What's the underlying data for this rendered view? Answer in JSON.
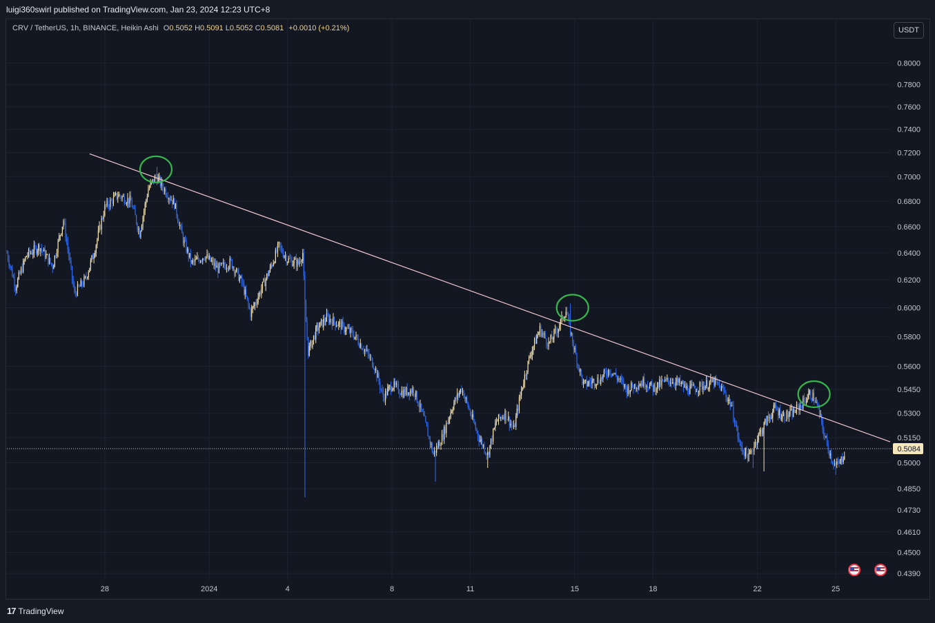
{
  "header": {
    "publisher": "luigi360swirl published on TradingView.com, Jan 23, 2024 12:23 UTC+8"
  },
  "legend": {
    "symbol": "CRV / TetherUS, 1h, BINANCE, Heikin Ashi",
    "o_label": "O",
    "o_value": "0.5052",
    "h_label": "H",
    "h_value": "0.5091",
    "l_label": "L",
    "l_value": "0.5052",
    "c_label": "C",
    "c_value": "0.5081",
    "change": "+0.0010 (+0.21%)"
  },
  "currency_button": "USDT",
  "footer": {
    "brand": "TradingView",
    "brand_mark": "17"
  },
  "icons": {
    "event_flags": [
      "us-flag-icon",
      "us-flag-icon"
    ]
  },
  "colors": {
    "bull": "#f5e3b0",
    "bear": "#2f6bf5",
    "trendline": "#f3c9d0",
    "annotation": "#35b84b",
    "bg": "#131722"
  },
  "chart_data": {
    "type": "candlestick",
    "symbol": "CRV / TetherUS",
    "interval": "1h",
    "exchange": "BINANCE",
    "style": "Heikin Ashi",
    "y_ticks": [
      "0.8000",
      "0.7800",
      "0.7600",
      "0.7400",
      "0.7200",
      "0.7000",
      "0.6800",
      "0.6600",
      "0.6400",
      "0.6200",
      "0.6000",
      "0.5800",
      "0.5600",
      "0.5450",
      "0.5300",
      "0.5150",
      "0.5000",
      "0.4850",
      "0.4730",
      "0.4610",
      "0.4500",
      "0.4390"
    ],
    "y_scale": "log",
    "ylim": [
      0.4355,
      0.824
    ],
    "x_ticks": [
      {
        "label": "28",
        "date": "2023-12-28"
      },
      {
        "label": "2024",
        "date": "2024-01-01"
      },
      {
        "label": "4",
        "date": "2024-01-04"
      },
      {
        "label": "8",
        "date": "2024-01-08"
      },
      {
        "label": "11",
        "date": "2024-01-11"
      },
      {
        "label": "15",
        "date": "2024-01-15"
      },
      {
        "label": "18",
        "date": "2024-01-18"
      },
      {
        "label": "22",
        "date": "2024-01-22"
      },
      {
        "label": "25",
        "date": "2024-01-25"
      }
    ],
    "xlim": [
      "2023-12-24T06:00",
      "2024-01-27T02:00"
    ],
    "current_price": "0.5084",
    "price_path": [
      [
        "2023-12-24T06:00",
        0.64
      ],
      [
        "2023-12-24T14:00",
        0.615
      ],
      [
        "2023-12-25T00:00",
        0.638
      ],
      [
        "2023-12-25T12:00",
        0.645
      ],
      [
        "2023-12-26T00:00",
        0.63
      ],
      [
        "2023-12-26T10:00",
        0.665
      ],
      [
        "2023-12-26T20:00",
        0.61
      ],
      [
        "2023-12-27T06:00",
        0.62
      ],
      [
        "2023-12-27T14:00",
        0.64
      ],
      [
        "2023-12-28T00:00",
        0.675
      ],
      [
        "2023-12-28T12:00",
        0.685
      ],
      [
        "2023-12-29T00:00",
        0.68
      ],
      [
        "2023-12-29T08:00",
        0.655
      ],
      [
        "2023-12-29T16:00",
        0.69
      ],
      [
        "2023-12-29T23:00",
        0.7
      ],
      [
        "2023-12-30T08:00",
        0.688
      ],
      [
        "2023-12-30T16:00",
        0.678
      ],
      [
        "2023-12-31T00:00",
        0.65
      ],
      [
        "2023-12-31T08:00",
        0.632
      ],
      [
        "2023-12-31T20:00",
        0.638
      ],
      [
        "2024-01-01T08:00",
        0.628
      ],
      [
        "2024-01-01T20:00",
        0.633
      ],
      [
        "2024-01-02T06:00",
        0.618
      ],
      [
        "2024-01-02T14:00",
        0.596
      ],
      [
        "2024-01-02T22:00",
        0.61
      ],
      [
        "2024-01-03T08:00",
        0.628
      ],
      [
        "2024-01-03T16:00",
        0.645
      ],
      [
        "2024-01-04T00:00",
        0.635
      ],
      [
        "2024-01-04T10:00",
        0.632
      ],
      [
        "2024-01-04T14:00",
        0.64
      ],
      [
        "2024-01-04T16:00",
        0.6
      ],
      [
        "2024-01-04T19:00",
        0.57
      ],
      [
        "2024-01-05T03:00",
        0.585
      ],
      [
        "2024-01-05T12:00",
        0.593
      ],
      [
        "2024-01-06T00:00",
        0.588
      ],
      [
        "2024-01-06T12:00",
        0.582
      ],
      [
        "2024-01-07T00:00",
        0.57
      ],
      [
        "2024-01-07T08:00",
        0.56
      ],
      [
        "2024-01-07T16:00",
        0.54
      ],
      [
        "2024-01-08T00:00",
        0.548
      ],
      [
        "2024-01-08T10:00",
        0.543
      ],
      [
        "2024-01-08T20:00",
        0.545
      ],
      [
        "2024-01-09T06:00",
        0.525
      ],
      [
        "2024-01-09T14:00",
        0.505
      ],
      [
        "2024-01-09T22:00",
        0.515
      ],
      [
        "2024-01-10T08:00",
        0.535
      ],
      [
        "2024-01-10T16:00",
        0.546
      ],
      [
        "2024-01-11T00:00",
        0.53
      ],
      [
        "2024-01-11T08:00",
        0.515
      ],
      [
        "2024-01-11T16:00",
        0.505
      ],
      [
        "2024-01-12T00:00",
        0.525
      ],
      [
        "2024-01-12T08:00",
        0.53
      ],
      [
        "2024-01-12T16:00",
        0.52
      ],
      [
        "2024-01-13T00:00",
        0.548
      ],
      [
        "2024-01-13T08:00",
        0.57
      ],
      [
        "2024-01-13T16:00",
        0.585
      ],
      [
        "2024-01-14T00:00",
        0.575
      ],
      [
        "2024-01-14T08:00",
        0.585
      ],
      [
        "2024-01-14T16:00",
        0.598
      ],
      [
        "2024-01-15T00:00",
        0.57
      ],
      [
        "2024-01-15T08:00",
        0.548
      ],
      [
        "2024-01-15T16:00",
        0.55
      ],
      [
        "2024-01-16T00:00",
        0.552
      ],
      [
        "2024-01-16T08:00",
        0.558
      ],
      [
        "2024-01-16T16:00",
        0.552
      ],
      [
        "2024-01-17T00:00",
        0.545
      ],
      [
        "2024-01-17T08:00",
        0.548
      ],
      [
        "2024-01-17T16:00",
        0.55
      ],
      [
        "2024-01-18T00:00",
        0.546
      ],
      [
        "2024-01-18T08:00",
        0.549
      ],
      [
        "2024-01-18T16:00",
        0.551
      ],
      [
        "2024-01-19T00:00",
        0.549
      ],
      [
        "2024-01-19T08:00",
        0.545
      ],
      [
        "2024-01-19T16:00",
        0.546
      ],
      [
        "2024-01-20T00:00",
        0.548
      ],
      [
        "2024-01-20T08:00",
        0.55
      ],
      [
        "2024-01-20T16:00",
        0.545
      ],
      [
        "2024-01-21T00:00",
        0.535
      ],
      [
        "2024-01-21T08:00",
        0.51
      ],
      [
        "2024-01-21T16:00",
        0.503
      ],
      [
        "2024-01-22T00:00",
        0.515
      ],
      [
        "2024-01-22T08:00",
        0.525
      ],
      [
        "2024-01-22T16:00",
        0.533
      ],
      [
        "2024-01-23T00:00",
        0.528
      ],
      [
        "2024-01-23T08:00",
        0.53
      ],
      [
        "2024-01-23T16:00",
        0.535
      ],
      [
        "2024-01-24T00:00",
        0.542
      ],
      [
        "2024-01-24T04:00",
        0.54
      ],
      [
        "2024-01-24T08:00",
        0.532
      ],
      [
        "2024-01-24T14:00",
        0.515
      ],
      [
        "2024-01-24T20:00",
        0.503
      ],
      [
        "2024-01-25T00:00",
        0.498
      ],
      [
        "2024-01-25T04:00",
        0.5
      ],
      [
        "2024-01-25T08:00",
        0.506
      ]
    ],
    "spikes": [
      {
        "time": "2023-12-30T00:00",
        "high": 0.708
      },
      {
        "time": "2024-01-04T16:00",
        "low": 0.48
      },
      {
        "time": "2024-01-09T16:00",
        "low": 0.489
      },
      {
        "time": "2024-01-11T16:00",
        "low": 0.497
      },
      {
        "time": "2024-01-14T20:00",
        "high": 0.603
      },
      {
        "time": "2024-01-21T20:00",
        "low": 0.497
      },
      {
        "time": "2024-01-22T06:00",
        "low": 0.495
      },
      {
        "time": "2024-01-25T00:00",
        "low": 0.493
      }
    ],
    "trendline": {
      "start": [
        "2023-12-27T10:00",
        0.719
      ],
      "end": [
        "2024-01-27T02:00",
        0.5125
      ]
    },
    "annotation_circles": [
      {
        "time": "2023-12-29T23:00",
        "price": 0.706
      },
      {
        "time": "2024-01-14T22:00",
        "price": 0.6
      },
      {
        "time": "2024-01-24T04:00",
        "price": 0.542
      }
    ]
  }
}
